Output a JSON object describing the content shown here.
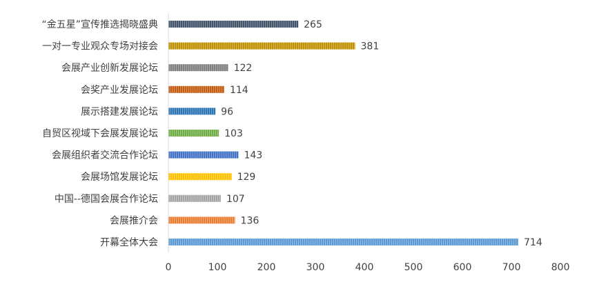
{
  "chart_data": {
    "type": "bar",
    "orientation": "horizontal",
    "categories": [
      "“金五星”宣传推选揭晓盛典",
      "一对一专业观众专场对接会",
      "会展产业创新发展论坛",
      "会奖产业发展论坛",
      "展示搭建发展论坛",
      "自贸区视域下会展发展论坛",
      "会展组织者交流合作论坛",
      "会展场馆发展论坛",
      "中国--德国会展合作论坛",
      "会展推介会",
      "开幕全体大会"
    ],
    "values": [
      265,
      381,
      122,
      114,
      96,
      103,
      143,
      129,
      107,
      136,
      714
    ],
    "colors": [
      "#44546a",
      "#bf9000",
      "#7f7f7f",
      "#c55a11",
      "#2e75b6",
      "#70ad47",
      "#4472c4",
      "#ffc000",
      "#a5a5a5",
      "#ed7d31",
      "#5b9bd5"
    ],
    "xlim": [
      0,
      800
    ],
    "xticks": [
      0,
      100,
      200,
      300,
      400,
      500,
      600,
      700,
      800
    ],
    "title": "",
    "xlabel": "",
    "ylabel": "",
    "grid": false,
    "legend": "none"
  }
}
